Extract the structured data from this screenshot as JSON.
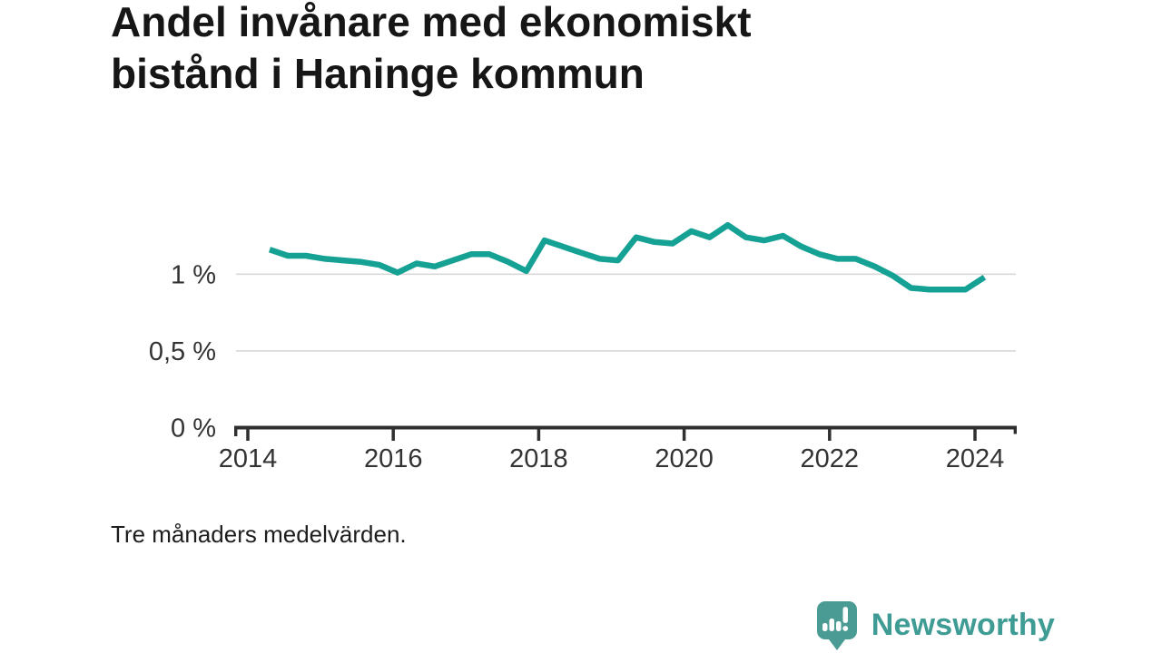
{
  "title": {
    "line1": "Andel invånare med ekonomiskt",
    "line2": "bistånd i Haninge kommun"
  },
  "footnote": "Tre månaders medelvärden.",
  "logo": {
    "text": "Newsworthy",
    "icon": "speech-bubble-with-bar-chart-and-exclamation",
    "text_color": "#3f9c95",
    "icon_color": "#4a9b94"
  },
  "chart_data": {
    "type": "line",
    "title": "Andel invånare med ekonomiskt bistånd i Haninge kommun",
    "note": "Tre månaders medelvärden.",
    "xlabel": "",
    "ylabel": "",
    "unit": "%",
    "legend": "none",
    "grid": "horizontal-only",
    "x": [
      2014.3,
      2014.55,
      2014.8,
      2015.06,
      2015.31,
      2015.56,
      2015.81,
      2016.06,
      2016.32,
      2016.57,
      2016.82,
      2017.07,
      2017.32,
      2017.58,
      2017.83,
      2018.08,
      2018.33,
      2018.58,
      2018.84,
      2019.09,
      2019.34,
      2019.59,
      2019.84,
      2020.1,
      2020.35,
      2020.6,
      2020.85,
      2021.1,
      2021.36,
      2021.61,
      2021.86,
      2022.11,
      2022.36,
      2022.62,
      2022.87,
      2023.12,
      2023.37,
      2023.62,
      2023.87,
      2024.13
    ],
    "values": [
      1.16,
      1.12,
      1.12,
      1.1,
      1.09,
      1.08,
      1.06,
      1.01,
      1.07,
      1.05,
      1.09,
      1.13,
      1.13,
      1.08,
      1.02,
      1.22,
      1.18,
      1.14,
      1.1,
      1.09,
      1.24,
      1.21,
      1.2,
      1.28,
      1.24,
      1.32,
      1.24,
      1.22,
      1.25,
      1.18,
      1.13,
      1.1,
      1.1,
      1.05,
      0.99,
      0.91,
      0.9,
      0.9,
      0.9,
      0.98
    ],
    "xticks": [
      {
        "label": "2014",
        "value": 2014
      },
      {
        "label": "2016",
        "value": 2016
      },
      {
        "label": "2018",
        "value": 2018
      },
      {
        "label": "2020",
        "value": 2020
      },
      {
        "label": "2022",
        "value": 2022
      },
      {
        "label": "2024",
        "value": 2024
      }
    ],
    "yticks": [
      {
        "label": "0 %",
        "value": 0
      },
      {
        "label": "0,5 %",
        "value": 0.5
      },
      {
        "label": "1 %",
        "value": 1
      }
    ],
    "xlim": [
      2013.81,
      2024.57
    ],
    "ylim": [
      0,
      1.55
    ],
    "line_color": "#16a195",
    "grid_color": "#d8d8d8",
    "axis_color": "#2f2f2f",
    "label_color": "#333333"
  }
}
